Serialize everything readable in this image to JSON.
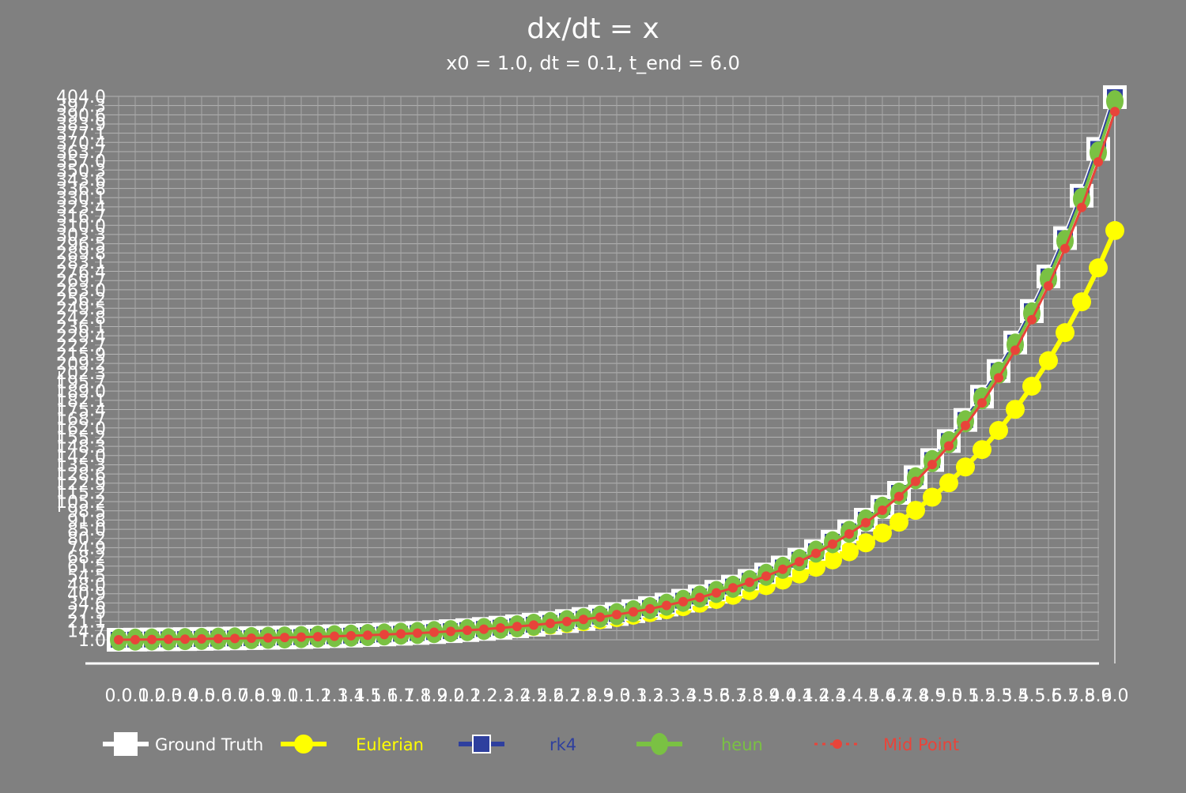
{
  "chart_data": {
    "type": "line",
    "title": "dx/dt = x",
    "subtitle": "x0 = 1.0, dt = 0.1, t_end = 6.0",
    "xlabel": "",
    "ylabel": "",
    "xlim": [
      0.0,
      6.0
    ],
    "ylim": [
      1.0,
      404.0
    ],
    "grid": true,
    "legend_position": "bottom",
    "x": [
      0.0,
      0.1,
      0.2,
      0.3,
      0.4,
      0.5,
      0.6,
      0.7,
      0.8,
      0.9,
      1.0,
      1.1,
      1.2,
      1.3,
      1.4,
      1.5,
      1.6,
      1.7,
      1.8,
      1.9,
      2.0,
      2.1,
      2.2,
      2.3,
      2.4,
      2.5,
      2.6,
      2.7,
      2.8,
      2.9,
      3.0,
      3.1,
      3.2,
      3.3,
      3.4,
      3.5,
      3.6,
      3.7,
      3.8,
      3.9,
      4.0,
      4.1,
      4.2,
      4.3,
      4.4,
      4.5,
      4.6,
      4.7,
      4.8,
      4.9,
      5.0,
      5.1,
      5.2,
      5.3,
      5.4,
      5.5,
      5.6,
      5.7,
      5.8,
      5.9,
      6.0
    ],
    "xtick_labels": [
      "0.0",
      "0.1",
      "0.2",
      "0.3",
      "0.4",
      "0.5",
      "0.6",
      "0.7",
      "0.8",
      "0.9",
      "1.0",
      "1.1",
      "1.2",
      "1.3",
      "1.4",
      "1.5",
      "1.6",
      "1.7",
      "1.8",
      "1.9",
      "2.0",
      "2.1",
      "2.2",
      "2.3",
      "2.4",
      "2.5",
      "2.6",
      "2.7",
      "2.8",
      "2.9",
      "3.0",
      "3.1",
      "3.2",
      "3.3",
      "3.4",
      "3.5",
      "3.6",
      "3.7",
      "3.8",
      "3.9",
      "4.0",
      "4.1",
      "4.2",
      "4.3",
      "4.4",
      "4.5",
      "4.6",
      "4.7",
      "4.8",
      "4.9",
      "5.0",
      "5.1",
      "5.2",
      "5.3",
      "5.4",
      "5.5",
      "5.6",
      "5.7",
      "5.8",
      "5.9",
      "6.0"
    ],
    "ytick_labels": [
      "1.0",
      "14.7",
      "21.1",
      "27.9",
      "34.6",
      "40.9",
      "48.0",
      "54.5",
      "61.5",
      "68.2",
      "74.9",
      "80.2",
      "85.0",
      "91.8",
      "98.5",
      "105.2",
      "115.2",
      "122.9",
      "128.6",
      "135.3",
      "142.0",
      "148.3",
      "155.2",
      "162.0",
      "168.7",
      "175.4",
      "182.1",
      "189.0",
      "195.7",
      "202.3",
      "209.2",
      "215.9",
      "222.7",
      "229.4",
      "236.1",
      "242.8",
      "249.5",
      "256.2",
      "263.0",
      "269.7",
      "276.4",
      "283.1",
      "289.8",
      "296.5",
      "303.3",
      "310.0",
      "316.7",
      "323.4",
      "330.1",
      "336.8",
      "343.6",
      "350.3",
      "357.0",
      "363.7",
      "370.4",
      "377.1",
      "383.9",
      "390.6",
      "397.3",
      "404.0"
    ],
    "series": [
      {
        "name": "Ground Truth",
        "color": "#ffffff",
        "marker": "square",
        "values": [
          1.0,
          1.11,
          1.22,
          1.35,
          1.49,
          1.65,
          1.82,
          2.01,
          2.23,
          2.46,
          2.72,
          3.0,
          3.32,
          3.67,
          4.06,
          4.48,
          4.95,
          5.47,
          6.05,
          6.69,
          7.39,
          8.17,
          9.03,
          9.97,
          11.02,
          12.18,
          13.46,
          14.88,
          16.44,
          18.17,
          20.09,
          22.2,
          24.53,
          27.11,
          29.96,
          33.12,
          36.6,
          40.45,
          44.7,
          49.4,
          54.6,
          60.34,
          66.69,
          73.7,
          81.45,
          90.02,
          99.48,
          109.95,
          121.51,
          134.29,
          148.41,
          164.02,
          181.27,
          200.34,
          221.41,
          244.69,
          270.43,
          298.87,
          330.3,
          365.04,
          403.43
        ]
      },
      {
        "name": "Eulerian",
        "color": "#ffff00",
        "marker": "circle",
        "values": [
          1.0,
          1.1,
          1.21,
          1.33,
          1.46,
          1.61,
          1.77,
          1.95,
          2.14,
          2.36,
          2.59,
          2.85,
          3.14,
          3.45,
          3.8,
          4.18,
          4.59,
          5.05,
          5.56,
          6.12,
          6.73,
          7.4,
          8.14,
          8.95,
          9.85,
          10.83,
          11.92,
          13.11,
          14.42,
          15.86,
          17.45,
          19.19,
          21.11,
          23.23,
          25.55,
          28.1,
          30.91,
          34.0,
          37.4,
          41.14,
          45.26,
          49.79,
          54.76,
          60.24,
          66.26,
          72.89,
          80.18,
          88.2,
          97.02,
          106.72,
          117.39,
          129.13,
          142.04,
          156.25,
          171.87,
          189.06,
          207.97,
          228.76,
          251.64,
          276.8,
          304.48
        ]
      },
      {
        "name": "rk4",
        "color": "#2e3f9e",
        "marker": "square",
        "values": [
          1.0,
          1.11,
          1.22,
          1.35,
          1.49,
          1.65,
          1.82,
          2.01,
          2.23,
          2.46,
          2.72,
          3.0,
          3.32,
          3.67,
          4.06,
          4.48,
          4.95,
          5.47,
          6.05,
          6.69,
          7.39,
          8.17,
          9.03,
          9.97,
          11.02,
          12.18,
          13.46,
          14.88,
          16.44,
          18.17,
          20.09,
          22.2,
          24.53,
          27.11,
          29.96,
          33.12,
          36.6,
          40.45,
          44.7,
          49.4,
          54.6,
          60.34,
          66.69,
          73.7,
          81.45,
          90.02,
          99.48,
          109.95,
          121.51,
          134.29,
          148.41,
          164.02,
          181.27,
          200.34,
          221.41,
          244.69,
          270.43,
          298.87,
          330.3,
          365.04,
          403.43
        ]
      },
      {
        "name": "heun",
        "color": "#7ac143",
        "marker": "ellipse",
        "values": [
          1.0,
          1.11,
          1.22,
          1.35,
          1.49,
          1.65,
          1.82,
          2.01,
          2.22,
          2.46,
          2.72,
          3.0,
          3.32,
          3.67,
          4.05,
          4.48,
          4.95,
          5.47,
          6.04,
          6.68,
          7.38,
          8.15,
          9.01,
          9.96,
          11.0,
          12.16,
          13.43,
          14.84,
          16.4,
          18.13,
          20.03,
          22.13,
          24.46,
          27.02,
          29.86,
          33.0,
          36.46,
          40.29,
          44.52,
          49.19,
          54.36,
          60.07,
          66.37,
          73.34,
          81.04,
          89.55,
          98.95,
          109.34,
          120.82,
          133.51,
          147.52,
          163.01,
          180.13,
          199.05,
          219.95,
          243.04,
          268.56,
          296.76,
          327.92,
          362.35,
          400.39
        ]
      },
      {
        "name": "Mid Point",
        "color": "#e8443a",
        "marker": "circle-dotted",
        "values": [
          1.0,
          1.1,
          1.21,
          1.34,
          1.47,
          1.63,
          1.8,
          1.98,
          2.19,
          2.42,
          2.67,
          2.95,
          3.26,
          3.6,
          3.98,
          4.4,
          4.86,
          5.37,
          5.93,
          6.55,
          7.24,
          8.0,
          8.84,
          9.77,
          10.79,
          11.92,
          13.17,
          14.56,
          16.09,
          17.78,
          19.64,
          21.7,
          23.98,
          26.5,
          29.28,
          32.36,
          35.76,
          39.51,
          43.66,
          48.24,
          53.31,
          58.91,
          65.1,
          71.93,
          79.49,
          87.83,
          97.05,
          107.24,
          118.5,
          130.95,
          144.7,
          159.89,
          176.68,
          195.23,
          215.73,
          238.38,
          263.41,
          291.07,
          321.63,
          355.4,
          392.72
        ]
      }
    ]
  }
}
